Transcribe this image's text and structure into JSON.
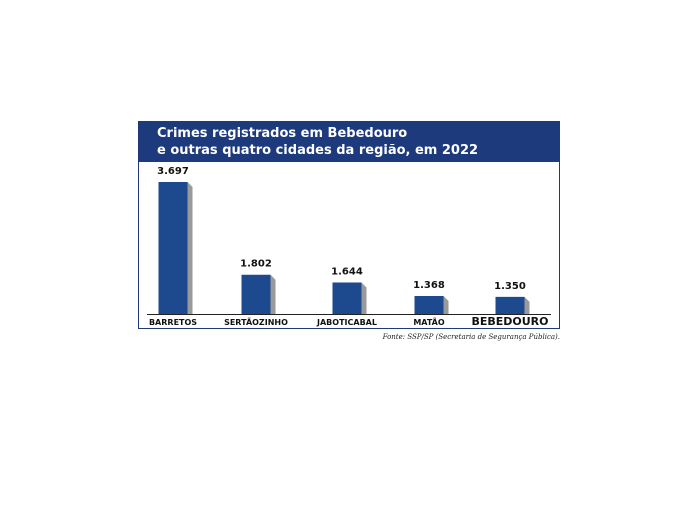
{
  "title": {
    "line1": "Crimes registrados em Bebedouro",
    "line2": "e outras quatro cidades da região, em 2022"
  },
  "source": "Fonte: SSP/SP (Secretaria de Segurança Pública).",
  "colors": {
    "bar": "#1d4a8f",
    "bar_shadow": "#9a9a9a",
    "title_bg": "#1d3a7c"
  },
  "chart_data": {
    "type": "bar",
    "title": "Crimes registrados em Bebedouro e outras quatro cidades da região, em 2022",
    "categories": [
      "BARRETOS",
      "SERTÃOZINHO",
      "JABOTICABAL",
      "MATÃO",
      "BEBEDOURO"
    ],
    "values": [
      3697,
      1802,
      1644,
      1368,
      1350
    ],
    "value_labels": [
      "3.697",
      "1.802",
      "1.644",
      "1.368",
      "1.350"
    ],
    "highlight_category": "BEBEDOURO",
    "xlabel": "",
    "ylabel": "",
    "ylim": [
      1000,
      3697
    ],
    "grid": false,
    "legend": "none"
  }
}
